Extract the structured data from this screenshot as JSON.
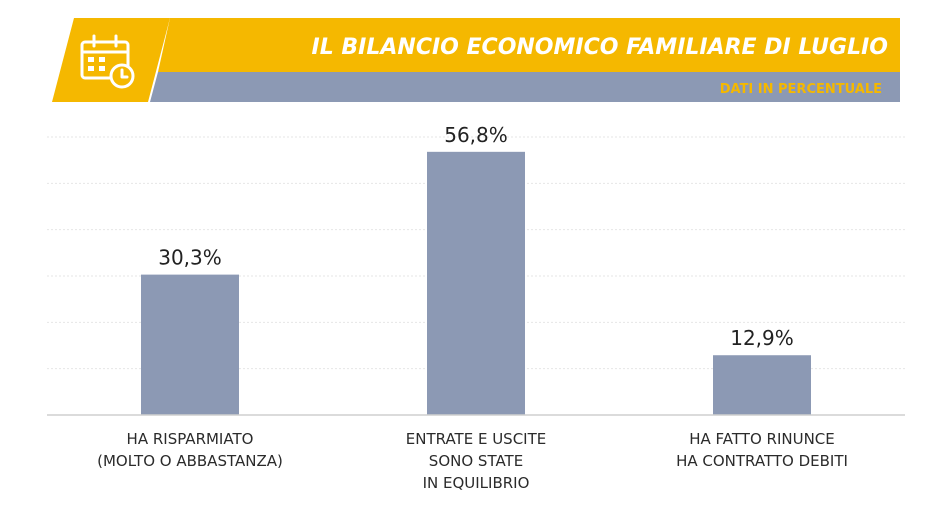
{
  "colors": {
    "accent_yellow": "#f5b800",
    "bar_slate": "#8c99b4",
    "header_band": "#8c99b4",
    "grid": "#e6e6e6",
    "axis": "#cfcfcf"
  },
  "header": {
    "icon": "calendar-clock-icon",
    "title": "IL BILANCIO ECONOMICO FAMILIARE DI LUGLIO",
    "subtitle": "DATI IN PERCENTUALE"
  },
  "chart_data": {
    "type": "bar",
    "title": "IL BILANCIO ECONOMICO FAMILIARE DI LUGLIO",
    "subtitle": "DATI IN PERCENTUALE",
    "categories": [
      [
        "HA RISPARMIATO",
        "(MOLTO O ABBASTANZA)"
      ],
      [
        "ENTRATE E USCITE",
        "SONO STATE",
        "IN EQUILIBRIO"
      ],
      [
        "HA FATTO RINUNCE",
        "HA CONTRATTO  DEBITI"
      ]
    ],
    "values": [
      30.3,
      56.8,
      12.9
    ],
    "value_labels": [
      "30,3%",
      "56,8%",
      "12,9%"
    ],
    "xlabel": "",
    "ylabel": "",
    "ylim": [
      0,
      60
    ],
    "grid": true,
    "legend": "none"
  }
}
